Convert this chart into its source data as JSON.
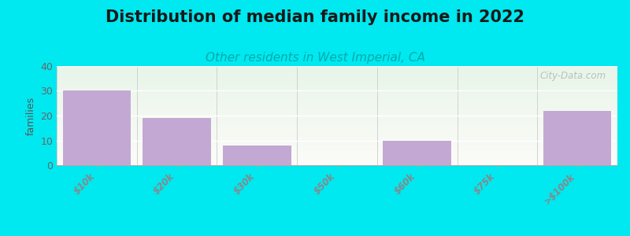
{
  "title": "Distribution of median family income in 2022",
  "subtitle": "Other residents in West Imperial, CA",
  "categories": [
    "$10k",
    "$20k",
    "$30k",
    "$50k",
    "$60k",
    "$75k",
    ">$100k"
  ],
  "values": [
    30,
    19,
    8,
    0,
    10,
    0,
    22
  ],
  "bar_color": "#c4a8d4",
  "ylabel": "families",
  "ylim": [
    0,
    40
  ],
  "yticks": [
    0,
    10,
    20,
    30,
    40
  ],
  "background_color": "#00e8f0",
  "plot_bg_top_color": "#e8f5e9",
  "plot_bg_bottom_color": "#f8f8f2",
  "title_fontsize": 15,
  "subtitle_fontsize": 11,
  "watermark": "City-Data.com",
  "tick_label_color": "#888888",
  "divider_color": "#cccccc",
  "grid_color": "#e0e0e0"
}
